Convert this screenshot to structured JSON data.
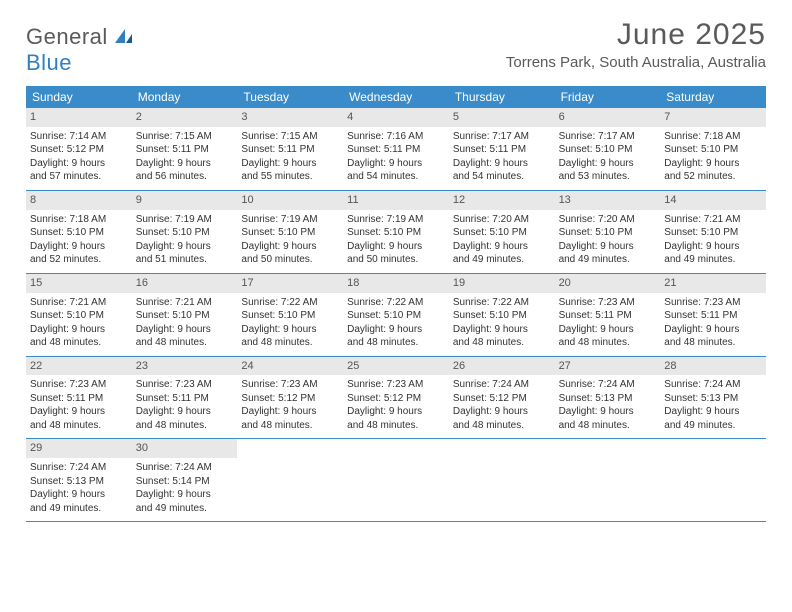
{
  "logo": {
    "main": "General",
    "sub": "Blue"
  },
  "title": "June 2025",
  "location": "Torrens Park, South Australia, Australia",
  "dayheads": [
    "Sunday",
    "Monday",
    "Tuesday",
    "Wednesday",
    "Thursday",
    "Friday",
    "Saturday"
  ],
  "colors": {
    "header_bg": "#3a8bc9",
    "daynum_bg": "#e8e8e8",
    "rule": "#3a8bc9",
    "logo_blue": "#2f7fc1",
    "text_gray": "#5a5a5a"
  },
  "weeks": [
    [
      {
        "n": "1",
        "sr": "Sunrise: 7:14 AM",
        "ss": "Sunset: 5:12 PM",
        "d1": "Daylight: 9 hours",
        "d2": "and 57 minutes."
      },
      {
        "n": "2",
        "sr": "Sunrise: 7:15 AM",
        "ss": "Sunset: 5:11 PM",
        "d1": "Daylight: 9 hours",
        "d2": "and 56 minutes."
      },
      {
        "n": "3",
        "sr": "Sunrise: 7:15 AM",
        "ss": "Sunset: 5:11 PM",
        "d1": "Daylight: 9 hours",
        "d2": "and 55 minutes."
      },
      {
        "n": "4",
        "sr": "Sunrise: 7:16 AM",
        "ss": "Sunset: 5:11 PM",
        "d1": "Daylight: 9 hours",
        "d2": "and 54 minutes."
      },
      {
        "n": "5",
        "sr": "Sunrise: 7:17 AM",
        "ss": "Sunset: 5:11 PM",
        "d1": "Daylight: 9 hours",
        "d2": "and 54 minutes."
      },
      {
        "n": "6",
        "sr": "Sunrise: 7:17 AM",
        "ss": "Sunset: 5:10 PM",
        "d1": "Daylight: 9 hours",
        "d2": "and 53 minutes."
      },
      {
        "n": "7",
        "sr": "Sunrise: 7:18 AM",
        "ss": "Sunset: 5:10 PM",
        "d1": "Daylight: 9 hours",
        "d2": "and 52 minutes."
      }
    ],
    [
      {
        "n": "8",
        "sr": "Sunrise: 7:18 AM",
        "ss": "Sunset: 5:10 PM",
        "d1": "Daylight: 9 hours",
        "d2": "and 52 minutes."
      },
      {
        "n": "9",
        "sr": "Sunrise: 7:19 AM",
        "ss": "Sunset: 5:10 PM",
        "d1": "Daylight: 9 hours",
        "d2": "and 51 minutes."
      },
      {
        "n": "10",
        "sr": "Sunrise: 7:19 AM",
        "ss": "Sunset: 5:10 PM",
        "d1": "Daylight: 9 hours",
        "d2": "and 50 minutes."
      },
      {
        "n": "11",
        "sr": "Sunrise: 7:19 AM",
        "ss": "Sunset: 5:10 PM",
        "d1": "Daylight: 9 hours",
        "d2": "and 50 minutes."
      },
      {
        "n": "12",
        "sr": "Sunrise: 7:20 AM",
        "ss": "Sunset: 5:10 PM",
        "d1": "Daylight: 9 hours",
        "d2": "and 49 minutes."
      },
      {
        "n": "13",
        "sr": "Sunrise: 7:20 AM",
        "ss": "Sunset: 5:10 PM",
        "d1": "Daylight: 9 hours",
        "d2": "and 49 minutes."
      },
      {
        "n": "14",
        "sr": "Sunrise: 7:21 AM",
        "ss": "Sunset: 5:10 PM",
        "d1": "Daylight: 9 hours",
        "d2": "and 49 minutes."
      }
    ],
    [
      {
        "n": "15",
        "sr": "Sunrise: 7:21 AM",
        "ss": "Sunset: 5:10 PM",
        "d1": "Daylight: 9 hours",
        "d2": "and 48 minutes."
      },
      {
        "n": "16",
        "sr": "Sunrise: 7:21 AM",
        "ss": "Sunset: 5:10 PM",
        "d1": "Daylight: 9 hours",
        "d2": "and 48 minutes."
      },
      {
        "n": "17",
        "sr": "Sunrise: 7:22 AM",
        "ss": "Sunset: 5:10 PM",
        "d1": "Daylight: 9 hours",
        "d2": "and 48 minutes."
      },
      {
        "n": "18",
        "sr": "Sunrise: 7:22 AM",
        "ss": "Sunset: 5:10 PM",
        "d1": "Daylight: 9 hours",
        "d2": "and 48 minutes."
      },
      {
        "n": "19",
        "sr": "Sunrise: 7:22 AM",
        "ss": "Sunset: 5:10 PM",
        "d1": "Daylight: 9 hours",
        "d2": "and 48 minutes."
      },
      {
        "n": "20",
        "sr": "Sunrise: 7:23 AM",
        "ss": "Sunset: 5:11 PM",
        "d1": "Daylight: 9 hours",
        "d2": "and 48 minutes."
      },
      {
        "n": "21",
        "sr": "Sunrise: 7:23 AM",
        "ss": "Sunset: 5:11 PM",
        "d1": "Daylight: 9 hours",
        "d2": "and 48 minutes."
      }
    ],
    [
      {
        "n": "22",
        "sr": "Sunrise: 7:23 AM",
        "ss": "Sunset: 5:11 PM",
        "d1": "Daylight: 9 hours",
        "d2": "and 48 minutes."
      },
      {
        "n": "23",
        "sr": "Sunrise: 7:23 AM",
        "ss": "Sunset: 5:11 PM",
        "d1": "Daylight: 9 hours",
        "d2": "and 48 minutes."
      },
      {
        "n": "24",
        "sr": "Sunrise: 7:23 AM",
        "ss": "Sunset: 5:12 PM",
        "d1": "Daylight: 9 hours",
        "d2": "and 48 minutes."
      },
      {
        "n": "25",
        "sr": "Sunrise: 7:23 AM",
        "ss": "Sunset: 5:12 PM",
        "d1": "Daylight: 9 hours",
        "d2": "and 48 minutes."
      },
      {
        "n": "26",
        "sr": "Sunrise: 7:24 AM",
        "ss": "Sunset: 5:12 PM",
        "d1": "Daylight: 9 hours",
        "d2": "and 48 minutes."
      },
      {
        "n": "27",
        "sr": "Sunrise: 7:24 AM",
        "ss": "Sunset: 5:13 PM",
        "d1": "Daylight: 9 hours",
        "d2": "and 48 minutes."
      },
      {
        "n": "28",
        "sr": "Sunrise: 7:24 AM",
        "ss": "Sunset: 5:13 PM",
        "d1": "Daylight: 9 hours",
        "d2": "and 49 minutes."
      }
    ],
    [
      {
        "n": "29",
        "sr": "Sunrise: 7:24 AM",
        "ss": "Sunset: 5:13 PM",
        "d1": "Daylight: 9 hours",
        "d2": "and 49 minutes."
      },
      {
        "n": "30",
        "sr": "Sunrise: 7:24 AM",
        "ss": "Sunset: 5:14 PM",
        "d1": "Daylight: 9 hours",
        "d2": "and 49 minutes."
      },
      null,
      null,
      null,
      null,
      null
    ]
  ]
}
